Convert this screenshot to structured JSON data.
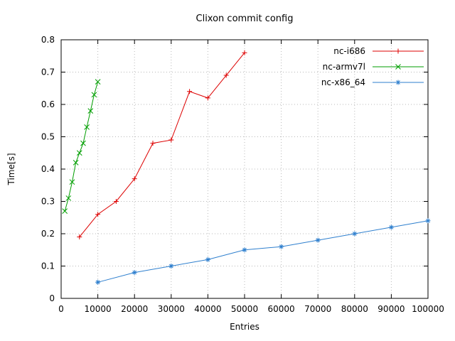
{
  "page": {
    "background": "#ffffff"
  },
  "chart_data": {
    "type": "line",
    "title": "Clixon commit config",
    "xlabel": "Entries",
    "ylabel": "Time[s]",
    "xlim": [
      0,
      100000
    ],
    "ylim": [
      0,
      0.8
    ],
    "xticks": [
      0,
      10000,
      20000,
      30000,
      40000,
      50000,
      60000,
      70000,
      80000,
      90000,
      100000
    ],
    "yticks": [
      0,
      0.1,
      0.2,
      0.3,
      0.4,
      0.5,
      0.6,
      0.7,
      0.8
    ],
    "grid": true,
    "grid_color": "#b8b8b8",
    "border_color": "#000000",
    "legend_position": "top-right-inside",
    "series": [
      {
        "name": "nc-i686",
        "color": "#dd0000",
        "marker": "plus",
        "x": [
          5000,
          10000,
          15000,
          20000,
          25000,
          30000,
          35000,
          40000,
          45000,
          50000
        ],
        "y": [
          0.19,
          0.26,
          0.3,
          0.37,
          0.48,
          0.49,
          0.64,
          0.62,
          0.69,
          0.76
        ]
      },
      {
        "name": "nc-armv7l",
        "color": "#009e00",
        "marker": "cross",
        "x": [
          1000,
          2000,
          3000,
          4000,
          5000,
          6000,
          7000,
          8000,
          9000,
          10000
        ],
        "y": [
          0.27,
          0.31,
          0.36,
          0.42,
          0.45,
          0.48,
          0.53,
          0.58,
          0.63,
          0.67
        ]
      },
      {
        "name": "nc-x86_64",
        "color": "#2e7fce",
        "marker": "asterisk",
        "x": [
          10000,
          20000,
          30000,
          40000,
          50000,
          60000,
          70000,
          80000,
          90000,
          100000
        ],
        "y": [
          0.05,
          0.08,
          0.1,
          0.12,
          0.15,
          0.16,
          0.18,
          0.2,
          0.22,
          0.24
        ]
      }
    ]
  }
}
